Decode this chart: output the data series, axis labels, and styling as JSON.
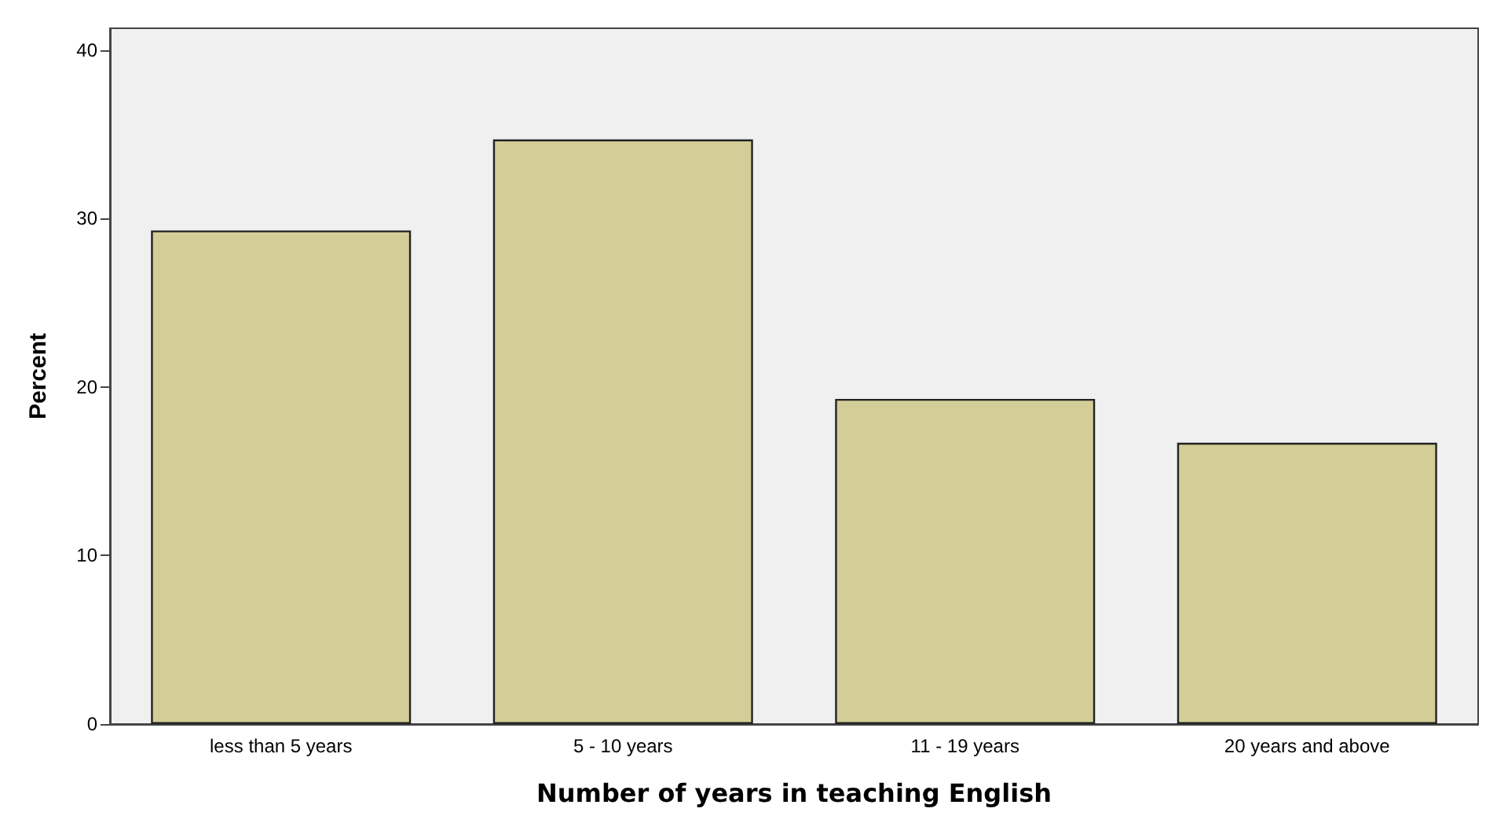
{
  "chart_data": {
    "type": "bar",
    "xlabel": "Number of years in teaching English",
    "ylabel": "Percent",
    "categories": [
      "less than 5 years",
      "5 - 10 years",
      "11 - 19 years",
      "20 years and above"
    ],
    "values": [
      29.3,
      34.7,
      19.3,
      16.7
    ],
    "color": "#d3ce97",
    "ylim": [
      0,
      41.3
    ],
    "yticks": [
      0,
      10,
      20,
      30,
      40
    ],
    "grid": false
  }
}
